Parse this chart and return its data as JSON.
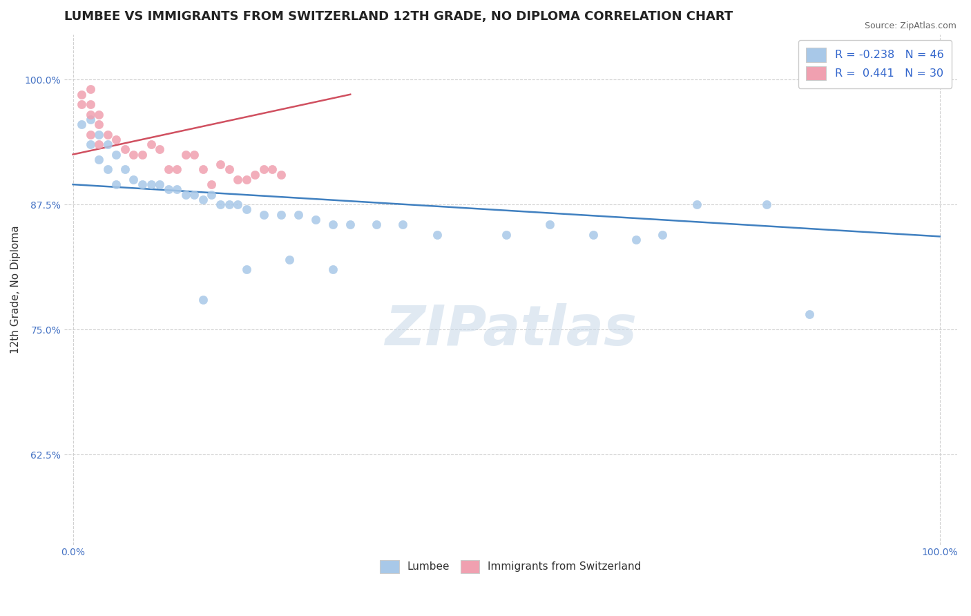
{
  "title": "LUMBEE VS IMMIGRANTS FROM SWITZERLAND 12TH GRADE, NO DIPLOMA CORRELATION CHART",
  "source_text": "Source: ZipAtlas.com",
  "ylabel": "12th Grade, No Diploma",
  "xlim": [
    -0.01,
    1.02
  ],
  "ylim": [
    0.535,
    1.045
  ],
  "ytick_labels": [
    "62.5%",
    "75.0%",
    "87.5%",
    "100.0%"
  ],
  "ytick_values": [
    0.625,
    0.75,
    0.875,
    1.0
  ],
  "xtick_labels": [
    "0.0%",
    "100.0%"
  ],
  "xtick_values": [
    0.0,
    1.0
  ],
  "blue_scatter_x": [
    0.01,
    0.02,
    0.02,
    0.03,
    0.03,
    0.04,
    0.04,
    0.05,
    0.05,
    0.06,
    0.07,
    0.08,
    0.09,
    0.1,
    0.11,
    0.12,
    0.13,
    0.14,
    0.15,
    0.16,
    0.17,
    0.18,
    0.19,
    0.2,
    0.22,
    0.24,
    0.26,
    0.28,
    0.3,
    0.32,
    0.35,
    0.38,
    0.42,
    0.5,
    0.55,
    0.6,
    0.65,
    0.68,
    0.72,
    0.8,
    0.85,
    0.9,
    0.25,
    0.2,
    0.15,
    0.3
  ],
  "blue_scatter_y": [
    0.955,
    0.96,
    0.935,
    0.945,
    0.92,
    0.935,
    0.91,
    0.925,
    0.895,
    0.91,
    0.9,
    0.895,
    0.895,
    0.895,
    0.89,
    0.89,
    0.885,
    0.885,
    0.88,
    0.885,
    0.875,
    0.875,
    0.875,
    0.87,
    0.865,
    0.865,
    0.865,
    0.86,
    0.855,
    0.855,
    0.855,
    0.855,
    0.845,
    0.845,
    0.855,
    0.845,
    0.84,
    0.845,
    0.875,
    0.875,
    0.765,
    0.995,
    0.82,
    0.81,
    0.78,
    0.81
  ],
  "pink_scatter_x": [
    0.01,
    0.01,
    0.02,
    0.02,
    0.02,
    0.02,
    0.03,
    0.03,
    0.03,
    0.04,
    0.05,
    0.06,
    0.07,
    0.08,
    0.09,
    0.1,
    0.11,
    0.12,
    0.13,
    0.14,
    0.15,
    0.16,
    0.17,
    0.18,
    0.19,
    0.2,
    0.21,
    0.22,
    0.23,
    0.24
  ],
  "pink_scatter_y": [
    0.985,
    0.975,
    0.99,
    0.975,
    0.965,
    0.945,
    0.965,
    0.955,
    0.935,
    0.945,
    0.94,
    0.93,
    0.925,
    0.925,
    0.935,
    0.93,
    0.91,
    0.91,
    0.925,
    0.925,
    0.91,
    0.895,
    0.915,
    0.91,
    0.9,
    0.9,
    0.905,
    0.91,
    0.91,
    0.905
  ],
  "blue_line_x": [
    0.0,
    1.0
  ],
  "blue_line_y": [
    0.895,
    0.843
  ],
  "pink_line_x": [
    0.0,
    0.32
  ],
  "pink_line_y": [
    0.925,
    0.985
  ],
  "watermark": "ZIPatlas",
  "title_fontsize": 13,
  "axis_label_fontsize": 11,
  "tick_fontsize": 10,
  "scatter_size": 80,
  "background_color": "#ffffff",
  "grid_color": "#d0d0d0",
  "blue_color": "#a8c8e8",
  "pink_color": "#f0a0b0",
  "blue_line_color": "#4080c0",
  "pink_line_color": "#d05060",
  "title_color": "#222222",
  "source_color": "#666666",
  "tick_color": "#4472c4",
  "ylabel_color": "#333333",
  "legend_r_color": "#3366cc",
  "legend_n_color": "#333333"
}
